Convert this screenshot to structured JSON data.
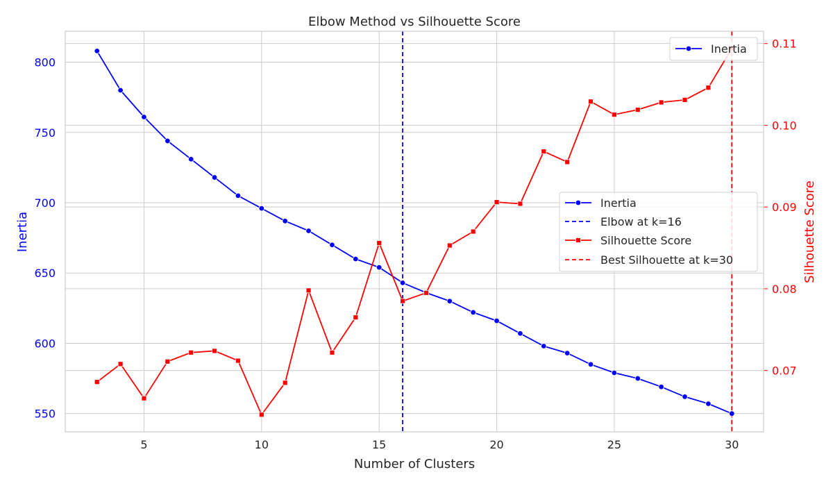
{
  "chart_data": {
    "type": "line",
    "title": "Elbow Method vs Silhouette Score",
    "xlabel": "Number of Clusters",
    "ylabel_left": "Inertia",
    "ylabel_right": "Silhouette Score",
    "xlim": [
      1.65,
      31.35
    ],
    "xticks": [
      5,
      10,
      15,
      20,
      25,
      30
    ],
    "ylim_left": [
      537,
      822
    ],
    "yticks_left": [
      550,
      600,
      650,
      700,
      750,
      800
    ],
    "ylim_right": [
      0.0625,
      0.1115
    ],
    "yticks_right": [
      0.07,
      0.08,
      0.09,
      0.1,
      0.11
    ],
    "yticks_right_labels": [
      "0.07",
      "0.08",
      "0.09",
      "0.10",
      "0.11"
    ],
    "grid": true,
    "x": [
      3,
      4,
      5,
      6,
      7,
      8,
      9,
      10,
      11,
      12,
      13,
      14,
      15,
      16,
      17,
      18,
      19,
      20,
      21,
      22,
      23,
      24,
      25,
      26,
      27,
      28,
      29,
      30
    ],
    "series": [
      {
        "name": "Inertia",
        "axis": "left",
        "color": "#0000ff",
        "marker": "circle",
        "values": [
          808,
          780,
          761,
          744,
          731,
          718,
          705,
          696,
          687,
          680,
          670,
          660,
          654,
          643,
          636,
          630,
          622,
          616,
          607,
          598,
          593,
          585,
          579,
          575,
          569,
          562,
          557,
          550
        ]
      },
      {
        "name": "Silhouette Score",
        "axis": "right",
        "color": "#ff0000",
        "marker": "square",
        "values": [
          0.0686,
          0.0708,
          0.0666,
          0.0711,
          0.0722,
          0.0724,
          0.0712,
          0.0646,
          0.0685,
          0.0798,
          0.0722,
          0.0765,
          0.0856,
          0.0785,
          0.0795,
          0.0853,
          0.087,
          0.0906,
          0.0904,
          0.0968,
          0.0955,
          0.1029,
          0.1013,
          0.1019,
          0.1028,
          0.1031,
          0.1046,
          0.1094
        ]
      }
    ],
    "vlines": [
      {
        "x": 16,
        "color": "#0000ff",
        "label": "Elbow at k=16"
      },
      {
        "x": 30,
        "color": "#ff0000",
        "label": "Best Silhouette at k=30"
      }
    ],
    "legend_top": {
      "placement": "top-right",
      "entries": [
        "Inertia"
      ]
    },
    "legend_main": {
      "placement": "center-right",
      "entries": [
        "Inertia",
        "Elbow at k=16",
        "Silhouette Score",
        "Best Silhouette at k=30"
      ]
    },
    "colors": {
      "left_axis": "#0000ff",
      "right_axis": "#ff0000",
      "grid": "#cccccc",
      "text": "#262626"
    }
  }
}
